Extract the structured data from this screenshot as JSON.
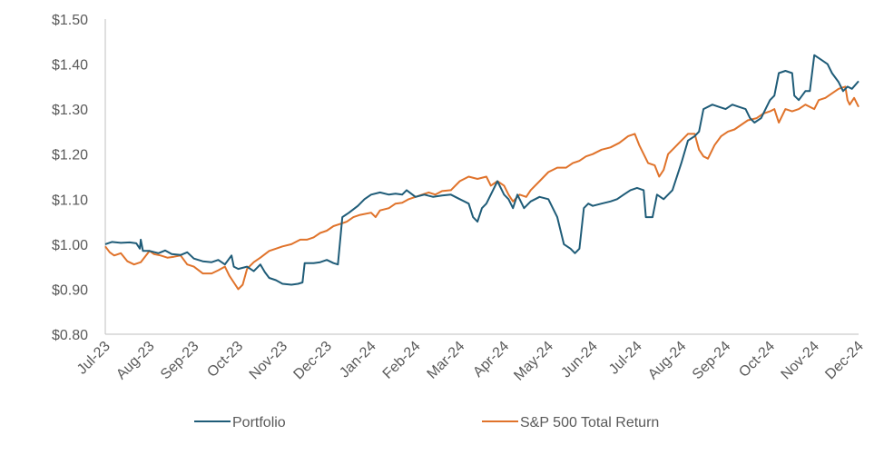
{
  "chart_data": {
    "type": "line",
    "title": "",
    "xlabel": "",
    "ylabel": "",
    "ylim": [
      0.8,
      1.5
    ],
    "yticks": [
      0.8,
      0.9,
      1.0,
      1.1,
      1.2,
      1.3,
      1.4,
      1.5
    ],
    "ytick_labels": [
      "$0.80",
      "$0.90",
      "$1.00",
      "$1.10",
      "$1.20",
      "$1.30",
      "$1.40",
      "$1.50"
    ],
    "xlim": [
      0,
      17
    ],
    "x_tick_labels": [
      "Jul-23",
      "Aug-23",
      "Sep-23",
      "Oct-23",
      "Nov-23",
      "Dec-23",
      "Jan-24",
      "Feb-24",
      "Mar-24",
      "Apr-24",
      "May-24",
      "Jun-24",
      "Jul-24",
      "Aug-24",
      "Sep-24",
      "Oct-24",
      "Nov-24",
      "Dec-24"
    ],
    "legend_position": "bottom",
    "series": [
      {
        "name": "Portfolio",
        "color": "#1f5c78",
        "points": [
          [
            0.0,
            1.0
          ],
          [
            0.15,
            1.005
          ],
          [
            0.35,
            1.003
          ],
          [
            0.55,
            1.004
          ],
          [
            0.7,
            1.002
          ],
          [
            0.78,
            0.99
          ],
          [
            0.8,
            1.01
          ],
          [
            0.85,
            0.985
          ],
          [
            1.0,
            0.985
          ],
          [
            1.2,
            0.98
          ],
          [
            1.35,
            0.986
          ],
          [
            1.5,
            0.978
          ],
          [
            1.7,
            0.976
          ],
          [
            1.85,
            0.982
          ],
          [
            2.0,
            0.968
          ],
          [
            2.2,
            0.962
          ],
          [
            2.4,
            0.96
          ],
          [
            2.55,
            0.965
          ],
          [
            2.7,
            0.955
          ],
          [
            2.85,
            0.975
          ],
          [
            2.9,
            0.95
          ],
          [
            3.0,
            0.945
          ],
          [
            3.2,
            0.95
          ],
          [
            3.35,
            0.94
          ],
          [
            3.5,
            0.955
          ],
          [
            3.6,
            0.938
          ],
          [
            3.7,
            0.925
          ],
          [
            3.85,
            0.92
          ],
          [
            4.0,
            0.912
          ],
          [
            4.2,
            0.91
          ],
          [
            4.35,
            0.912
          ],
          [
            4.45,
            0.915
          ],
          [
            4.5,
            0.958
          ],
          [
            4.7,
            0.958
          ],
          [
            4.85,
            0.96
          ],
          [
            5.0,
            0.965
          ],
          [
            5.15,
            0.958
          ],
          [
            5.25,
            0.955
          ],
          [
            5.35,
            1.06
          ],
          [
            5.5,
            1.07
          ],
          [
            5.7,
            1.085
          ],
          [
            5.85,
            1.1
          ],
          [
            6.0,
            1.11
          ],
          [
            6.2,
            1.115
          ],
          [
            6.4,
            1.11
          ],
          [
            6.55,
            1.112
          ],
          [
            6.7,
            1.11
          ],
          [
            6.8,
            1.12
          ],
          [
            7.0,
            1.105
          ],
          [
            7.2,
            1.11
          ],
          [
            7.4,
            1.105
          ],
          [
            7.6,
            1.108
          ],
          [
            7.8,
            1.11
          ],
          [
            8.0,
            1.1
          ],
          [
            8.2,
            1.09
          ],
          [
            8.3,
            1.06
          ],
          [
            8.4,
            1.05
          ],
          [
            8.5,
            1.08
          ],
          [
            8.6,
            1.09
          ],
          [
            8.75,
            1.12
          ],
          [
            8.85,
            1.14
          ],
          [
            9.0,
            1.11
          ],
          [
            9.1,
            1.1
          ],
          [
            9.2,
            1.08
          ],
          [
            9.3,
            1.11
          ],
          [
            9.45,
            1.08
          ],
          [
            9.6,
            1.095
          ],
          [
            9.8,
            1.105
          ],
          [
            10.0,
            1.1
          ],
          [
            10.1,
            1.08
          ],
          [
            10.2,
            1.06
          ],
          [
            10.35,
            1.0
          ],
          [
            10.5,
            0.99
          ],
          [
            10.6,
            0.98
          ],
          [
            10.7,
            0.99
          ],
          [
            10.8,
            1.08
          ],
          [
            10.9,
            1.09
          ],
          [
            11.0,
            1.085
          ],
          [
            11.2,
            1.09
          ],
          [
            11.4,
            1.095
          ],
          [
            11.55,
            1.1
          ],
          [
            11.7,
            1.11
          ],
          [
            11.85,
            1.12
          ],
          [
            12.0,
            1.125
          ],
          [
            12.15,
            1.12
          ],
          [
            12.2,
            1.06
          ],
          [
            12.35,
            1.06
          ],
          [
            12.45,
            1.11
          ],
          [
            12.6,
            1.1
          ],
          [
            12.8,
            1.12
          ],
          [
            13.0,
            1.18
          ],
          [
            13.15,
            1.23
          ],
          [
            13.3,
            1.24
          ],
          [
            13.4,
            1.25
          ],
          [
            13.5,
            1.3
          ],
          [
            13.7,
            1.31
          ],
          [
            13.85,
            1.305
          ],
          [
            14.0,
            1.3
          ],
          [
            14.15,
            1.31
          ],
          [
            14.3,
            1.305
          ],
          [
            14.45,
            1.3
          ],
          [
            14.55,
            1.28
          ],
          [
            14.65,
            1.27
          ],
          [
            14.8,
            1.28
          ],
          [
            14.9,
            1.3
          ],
          [
            15.0,
            1.32
          ],
          [
            15.1,
            1.33
          ],
          [
            15.2,
            1.38
          ],
          [
            15.35,
            1.385
          ],
          [
            15.5,
            1.38
          ],
          [
            15.55,
            1.33
          ],
          [
            15.65,
            1.32
          ],
          [
            15.8,
            1.34
          ],
          [
            15.9,
            1.34
          ],
          [
            16.0,
            1.42
          ],
          [
            16.15,
            1.41
          ],
          [
            16.3,
            1.4
          ],
          [
            16.4,
            1.38
          ],
          [
            16.55,
            1.36
          ],
          [
            16.65,
            1.34
          ],
          [
            16.75,
            1.35
          ],
          [
            16.85,
            1.345
          ],
          [
            17.0,
            1.362
          ]
        ]
      },
      {
        "name": "S&P 500 Total Return",
        "color": "#e0732b",
        "points": [
          [
            0.0,
            0.995
          ],
          [
            0.1,
            0.982
          ],
          [
            0.2,
            0.975
          ],
          [
            0.35,
            0.98
          ],
          [
            0.5,
            0.962
          ],
          [
            0.65,
            0.955
          ],
          [
            0.8,
            0.96
          ],
          [
            1.0,
            0.985
          ],
          [
            1.1,
            0.978
          ],
          [
            1.25,
            0.975
          ],
          [
            1.4,
            0.97
          ],
          [
            1.55,
            0.972
          ],
          [
            1.7,
            0.975
          ],
          [
            1.85,
            0.955
          ],
          [
            2.0,
            0.95
          ],
          [
            2.2,
            0.935
          ],
          [
            2.4,
            0.935
          ],
          [
            2.55,
            0.942
          ],
          [
            2.7,
            0.95
          ],
          [
            2.8,
            0.93
          ],
          [
            2.9,
            0.915
          ],
          [
            3.0,
            0.9
          ],
          [
            3.1,
            0.91
          ],
          [
            3.2,
            0.945
          ],
          [
            3.35,
            0.96
          ],
          [
            3.5,
            0.97
          ],
          [
            3.7,
            0.985
          ],
          [
            3.85,
            0.99
          ],
          [
            4.0,
            0.995
          ],
          [
            4.2,
            1.0
          ],
          [
            4.4,
            1.01
          ],
          [
            4.55,
            1.01
          ],
          [
            4.7,
            1.015
          ],
          [
            4.85,
            1.025
          ],
          [
            5.0,
            1.03
          ],
          [
            5.15,
            1.04
          ],
          [
            5.3,
            1.045
          ],
          [
            5.45,
            1.05
          ],
          [
            5.6,
            1.06
          ],
          [
            5.75,
            1.065
          ],
          [
            6.0,
            1.07
          ],
          [
            6.1,
            1.06
          ],
          [
            6.2,
            1.075
          ],
          [
            6.4,
            1.08
          ],
          [
            6.55,
            1.09
          ],
          [
            6.7,
            1.092
          ],
          [
            6.85,
            1.1
          ],
          [
            7.0,
            1.105
          ],
          [
            7.15,
            1.11
          ],
          [
            7.3,
            1.115
          ],
          [
            7.45,
            1.11
          ],
          [
            7.6,
            1.118
          ],
          [
            7.8,
            1.12
          ],
          [
            8.0,
            1.14
          ],
          [
            8.2,
            1.15
          ],
          [
            8.4,
            1.145
          ],
          [
            8.6,
            1.15
          ],
          [
            8.7,
            1.13
          ],
          [
            8.85,
            1.14
          ],
          [
            9.0,
            1.13
          ],
          [
            9.1,
            1.11
          ],
          [
            9.2,
            1.095
          ],
          [
            9.35,
            1.11
          ],
          [
            9.5,
            1.105
          ],
          [
            9.6,
            1.12
          ],
          [
            9.8,
            1.14
          ],
          [
            10.0,
            1.16
          ],
          [
            10.2,
            1.17
          ],
          [
            10.4,
            1.17
          ],
          [
            10.55,
            1.18
          ],
          [
            10.7,
            1.185
          ],
          [
            10.85,
            1.195
          ],
          [
            11.0,
            1.2
          ],
          [
            11.2,
            1.21
          ],
          [
            11.4,
            1.215
          ],
          [
            11.6,
            1.225
          ],
          [
            11.8,
            1.24
          ],
          [
            11.95,
            1.245
          ],
          [
            12.05,
            1.22
          ],
          [
            12.15,
            1.2
          ],
          [
            12.25,
            1.18
          ],
          [
            12.4,
            1.175
          ],
          [
            12.5,
            1.15
          ],
          [
            12.6,
            1.165
          ],
          [
            12.7,
            1.2
          ],
          [
            12.85,
            1.215
          ],
          [
            13.0,
            1.23
          ],
          [
            13.15,
            1.245
          ],
          [
            13.3,
            1.245
          ],
          [
            13.4,
            1.21
          ],
          [
            13.5,
            1.195
          ],
          [
            13.6,
            1.19
          ],
          [
            13.75,
            1.22
          ],
          [
            13.9,
            1.24
          ],
          [
            14.05,
            1.25
          ],
          [
            14.2,
            1.255
          ],
          [
            14.35,
            1.265
          ],
          [
            14.5,
            1.275
          ],
          [
            14.7,
            1.28
          ],
          [
            14.85,
            1.29
          ],
          [
            15.0,
            1.295
          ],
          [
            15.1,
            1.3
          ],
          [
            15.2,
            1.27
          ],
          [
            15.35,
            1.3
          ],
          [
            15.5,
            1.295
          ],
          [
            15.65,
            1.3
          ],
          [
            15.8,
            1.31
          ],
          [
            16.0,
            1.3
          ],
          [
            16.1,
            1.32
          ],
          [
            16.25,
            1.325
          ],
          [
            16.4,
            1.335
          ],
          [
            16.55,
            1.345
          ],
          [
            16.7,
            1.35
          ],
          [
            16.75,
            1.32
          ],
          [
            16.8,
            1.31
          ],
          [
            16.9,
            1.325
          ],
          [
            17.0,
            1.305
          ]
        ]
      }
    ]
  }
}
